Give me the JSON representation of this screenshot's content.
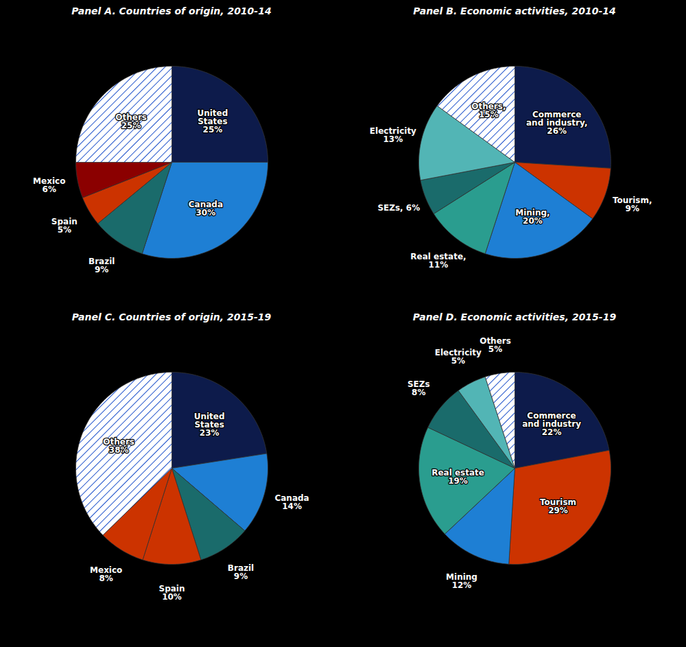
{
  "chart_data": [
    {
      "type": "pie",
      "title": "Panel A. Countries of origin, 2010-14",
      "categories": [
        "United\nStates\n25%",
        "Canada\n30%",
        "Brazil\n9%",
        "Spain\n5%",
        "Mexico\n6%",
        "Others\n25%"
      ],
      "values": [
        25,
        30,
        9,
        5,
        6,
        25
      ],
      "colors": [
        "#0d1b4b",
        "#1e7fd4",
        "#1a6b6b",
        "#cc3300",
        "#8b0000",
        "hatch"
      ]
    },
    {
      "type": "pie",
      "title": "Panel B. Economic activities, 2010-14",
      "categories": [
        "Commerce\nand industry,\n26%",
        "Tourism,\n9%",
        "Mining,\n20%",
        "Real estate,\n11%",
        "SEZs, 6%",
        "Electricity\n13%",
        "Others,\n15%"
      ],
      "values": [
        26,
        9,
        20,
        11,
        6,
        13,
        15
      ],
      "colors": [
        "#0d1b4b",
        "#cc3300",
        "#1e7fd4",
        "#2a9d8f",
        "#1a6b6b",
        "#52b5b5",
        "hatch"
      ]
    },
    {
      "type": "pie",
      "title": "Panel C. Countries of origin, 2015-19",
      "categories": [
        "United\nStates\n23%",
        "Canada\n14%",
        "Brazil\n9%",
        "Spain\n10%",
        "Mexico\n8%",
        "Others\n38%"
      ],
      "values": [
        23,
        14,
        9,
        10,
        8,
        38
      ],
      "colors": [
        "#0d1b4b",
        "#1e7fd4",
        "#1a6b6b",
        "#cc3300",
        "#cc3300",
        "hatch"
      ]
    },
    {
      "type": "pie",
      "title": "Panel D. Economic activities, 2015-19",
      "categories": [
        "Commerce\nand industry\n22%",
        "Tourism\n29%",
        "Mining\n12%",
        "Real estate\n19%",
        "SEZs\n8%",
        "Electricity\n5%",
        "Others\n5%"
      ],
      "values": [
        22,
        29,
        12,
        19,
        8,
        5,
        5
      ],
      "colors": [
        "#0d1b4b",
        "#cc3300",
        "#1e7fd4",
        "#2a9d8f",
        "#1a6b6b",
        "#52b5b5",
        "hatch"
      ]
    }
  ]
}
